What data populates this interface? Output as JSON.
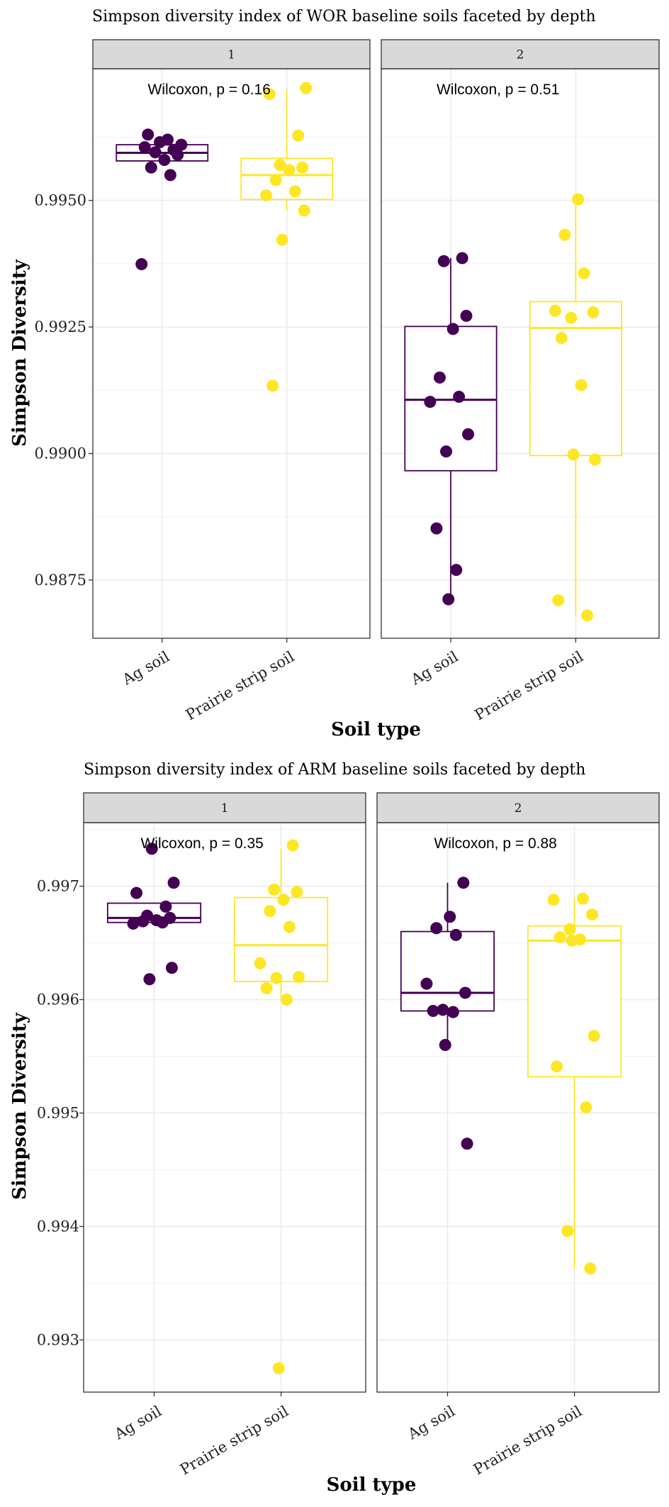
{
  "colors": {
    "ag": "#440154",
    "prairie": "#FDE725",
    "grid": "#EBEBEB",
    "strip_fill": "#D9D9D9",
    "border": "#333333"
  },
  "chart_data": [
    {
      "type": "boxplot",
      "title": "Simpson diversity index of WOR baseline soils faceted by depth",
      "xlabel": "Soil type",
      "ylabel": "Simpson Diversity",
      "categories": [
        "Ag soil",
        "Prairie strip soil"
      ],
      "ylim": [
        0.98635,
        0.9976
      ],
      "yticks": [
        0.9875,
        0.99,
        0.9925,
        0.995
      ],
      "ytick_labels": [
        "0.9875",
        "0.9900",
        "0.9925",
        "0.9950"
      ],
      "facets": [
        {
          "label": "1",
          "annotation": "Wilcoxon, p = 0.16",
          "series": [
            {
              "category": "Ag soil",
              "box": {
                "q1": 0.99578,
                "median": 0.99594,
                "q3": 0.9961,
                "whisker_low": 0.99578,
                "whisker_high": 0.9961
              },
              "points": [
                0.9963,
                0.9962,
                0.99615,
                0.9961,
                0.99605,
                0.996,
                0.99595,
                0.9959,
                0.9958,
                0.99565,
                0.9955,
                0.99374
              ]
            },
            {
              "category": "Prairie strip soil",
              "box": {
                "q1": 0.99502,
                "median": 0.9955,
                "q3": 0.99583,
                "whisker_low": 0.9948,
                "whisker_high": 0.9972
              },
              "points": [
                0.99722,
                0.9971,
                0.99628,
                0.9957,
                0.99565,
                0.9956,
                0.9954,
                0.99518,
                0.9951,
                0.9948,
                0.99422,
                0.99134
              ]
            }
          ]
        },
        {
          "label": "2",
          "annotation": "Wilcoxon, p = 0.51",
          "series": [
            {
              "category": "Ag soil",
              "box": {
                "q1": 0.98966,
                "median": 0.99106,
                "q3": 0.99251,
                "whisker_low": 0.98712,
                "whisker_high": 0.99386
              },
              "points": [
                0.99386,
                0.9938,
                0.99272,
                0.99246,
                0.9915,
                0.99112,
                0.99102,
                0.99038,
                0.99004,
                0.98852,
                0.9877,
                0.98712
              ]
            },
            {
              "category": "Prairie strip soil",
              "box": {
                "q1": 0.98996,
                "median": 0.99248,
                "q3": 0.993,
                "whisker_low": 0.9868,
                "whisker_high": 0.99502
              },
              "points": [
                0.99502,
                0.99432,
                0.99356,
                0.99282,
                0.99279,
                0.99268,
                0.99228,
                0.99135,
                0.98998,
                0.98988,
                0.9871,
                0.9868
              ]
            }
          ]
        }
      ]
    },
    {
      "type": "boxplot",
      "title": "Simpson diversity index of ARM baseline soils faceted by depth",
      "xlabel": "Soil type",
      "ylabel": "Simpson Diversity",
      "categories": [
        "Ag soil",
        "Prairie strip soil"
      ],
      "ylim": [
        0.99254,
        0.99756
      ],
      "yticks": [
        0.993,
        0.994,
        0.995,
        0.996,
        0.997
      ],
      "ytick_labels": [
        "0.993",
        "0.994",
        "0.995",
        "0.996",
        "0.997"
      ],
      "facets": [
        {
          "label": "1",
          "annotation": "Wilcoxon, p = 0.35",
          "series": [
            {
              "category": "Ag soil",
              "box": {
                "q1": 0.99668,
                "median": 0.99672,
                "q3": 0.99685,
                "whisker_low": 0.99666,
                "whisker_high": 0.99685
              },
              "points": [
                0.99733,
                0.99703,
                0.99694,
                0.99682,
                0.99674,
                0.99672,
                0.9967,
                0.99669,
                0.99668,
                0.99667,
                0.99628,
                0.99618
              ]
            },
            {
              "category": "Prairie strip soil",
              "box": {
                "q1": 0.99616,
                "median": 0.99648,
                "q3": 0.9969,
                "whisker_low": 0.996,
                "whisker_high": 0.99733
              },
              "points": [
                0.99736,
                0.99697,
                0.99695,
                0.99688,
                0.99678,
                0.99664,
                0.99632,
                0.9962,
                0.99619,
                0.9961,
                0.996,
                0.99275
              ]
            }
          ]
        },
        {
          "label": "2",
          "annotation": "Wilcoxon, p = 0.88",
          "series": [
            {
              "category": "Ag soil",
              "box": {
                "q1": 0.9959,
                "median": 0.99606,
                "q3": 0.9966,
                "whisker_low": 0.9956,
                "whisker_high": 0.99703
              },
              "points": [
                0.99703,
                0.99673,
                0.99663,
                0.99657,
                0.99614,
                0.99606,
                0.99591,
                0.9959,
                0.99589,
                0.9956,
                0.99473
              ]
            },
            {
              "category": "Prairie strip soil",
              "box": {
                "q1": 0.99532,
                "median": 0.99652,
                "q3": 0.99665,
                "whisker_low": 0.99363,
                "whisker_high": 0.9969
              },
              "points": [
                0.99689,
                0.99688,
                0.99675,
                0.99662,
                0.99655,
                0.99653,
                0.99652,
                0.99568,
                0.99541,
                0.99505,
                0.99396,
                0.99363
              ]
            }
          ]
        }
      ]
    }
  ]
}
